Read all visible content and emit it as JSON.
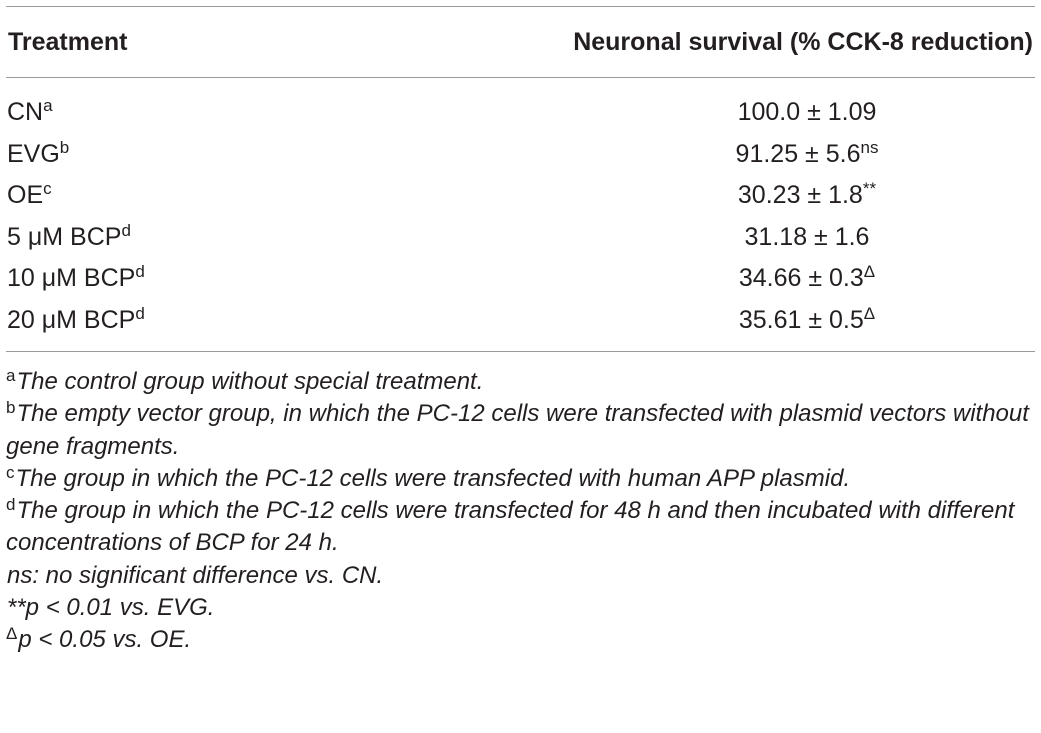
{
  "table": {
    "header": {
      "treatment": "Treatment",
      "survival": "Neuronal survival (% CCK-8 reduction)"
    },
    "rows": [
      {
        "treatment": "CN",
        "treatment_sup": "a",
        "value": "100.0 ± 1.09",
        "value_sup": ""
      },
      {
        "treatment": "EVG",
        "treatment_sup": "b",
        "value": "91.25 ± 5.6",
        "value_sup": "ns"
      },
      {
        "treatment": "OE",
        "treatment_sup": "c",
        "value": "30.23 ± 1.8",
        "value_sup": "**"
      },
      {
        "treatment": "5 μM BCP",
        "treatment_sup": "d",
        "value": "31.18 ± 1.6",
        "value_sup": ""
      },
      {
        "treatment": "10 μM BCP",
        "treatment_sup": "d",
        "value": "34.66 ± 0.3",
        "value_sup": "Δ"
      },
      {
        "treatment": "20 μM BCP",
        "treatment_sup": "d",
        "value": "35.61 ± 0.5",
        "value_sup": "Δ"
      }
    ]
  },
  "footnotes": [
    {
      "mark": "a",
      "text": "The control group without special treatment."
    },
    {
      "mark": "b",
      "text": "The empty vector group, in which the PC-12 cells were transfected with plasmid vectors without gene fragments."
    },
    {
      "mark": "c",
      "text": "The group in which the PC-12 cells were transfected with human APP plasmid."
    },
    {
      "mark": "d",
      "text": "The group in which the PC-12 cells were transfected for 48 h and then incubated with different concentrations of BCP for 24 h."
    },
    {
      "mark": "",
      "text": "ns: no significant difference vs. CN."
    },
    {
      "mark": "",
      "text": "**p < 0.01 vs. EVG."
    },
    {
      "mark": "Δ",
      "text": "p < 0.05 vs. OE."
    }
  ]
}
